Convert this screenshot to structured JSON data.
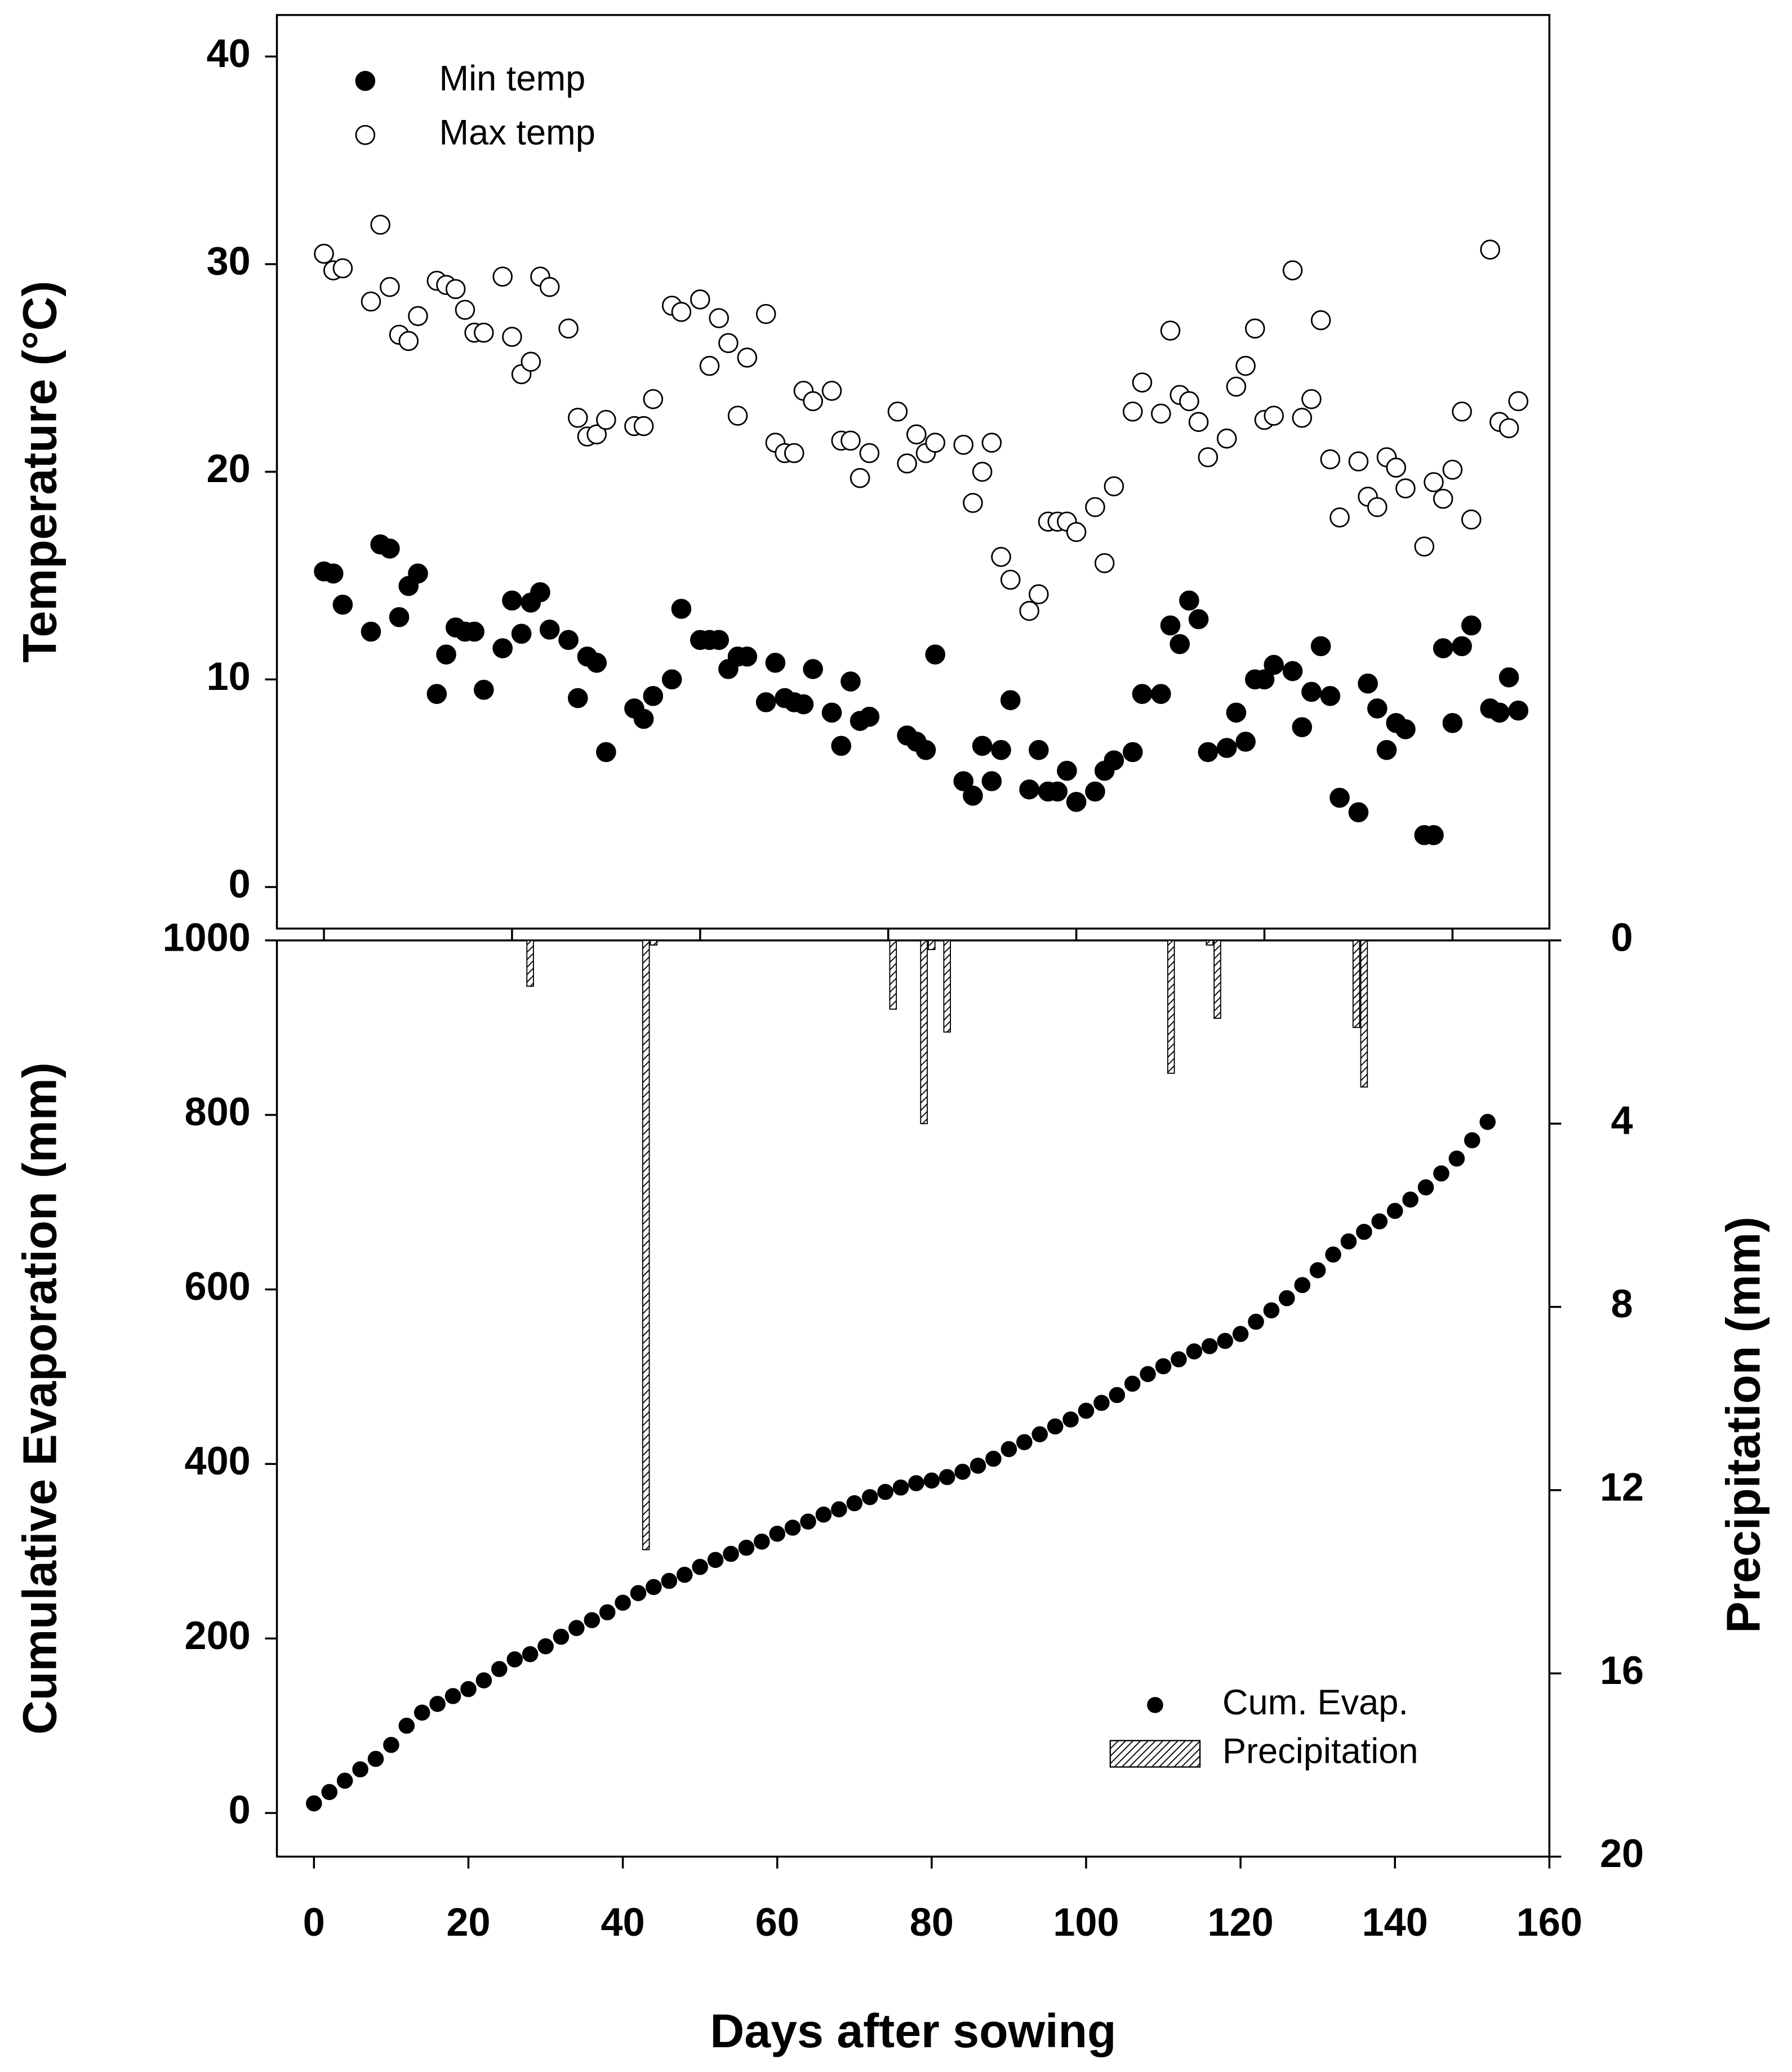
{
  "chart_data": [
    {
      "type": "scatter",
      "ylabel": "Temperature (°C)",
      "xlim": [
        -5,
        130.3
      ],
      "xticks": [
        0,
        20,
        40,
        60,
        80,
        100,
        120
      ],
      "xtick_labels": false,
      "ylim": [
        -2,
        42
      ],
      "yticks": [
        0,
        10,
        20,
        30,
        40
      ],
      "legend": "upper left",
      "x": [
        0,
        1,
        2,
        5,
        6,
        7,
        8,
        9,
        10,
        12,
        13,
        14,
        15,
        16,
        17,
        19,
        20,
        21,
        22,
        23,
        24,
        26,
        27,
        28,
        29,
        30,
        33,
        34,
        35,
        37,
        38,
        40,
        41,
        42,
        43,
        44,
        45,
        47,
        48,
        49,
        50,
        51,
        52,
        54,
        55,
        56,
        57,
        58,
        61,
        62,
        63,
        64,
        65,
        68,
        69,
        70,
        71,
        72,
        73,
        75,
        76,
        77,
        78,
        79,
        80,
        82,
        83,
        84,
        86,
        87,
        89,
        90,
        91,
        92,
        93,
        94,
        96,
        97,
        98,
        99,
        100,
        101,
        103,
        104,
        105,
        106,
        107,
        108,
        110,
        111,
        112,
        113,
        114,
        115,
        117,
        118,
        119,
        120,
        121,
        122,
        124,
        125,
        126,
        127
      ],
      "series": [
        {
          "name": "Min temp",
          "color": "#000000",
          "marker": "filled",
          "values": [
            15.2,
            15.1,
            13.6,
            12.3,
            16.5,
            16.3,
            13.0,
            14.5,
            15.1,
            9.3,
            11.2,
            12.5,
            12.3,
            12.3,
            9.5,
            11.5,
            13.8,
            12.2,
            13.7,
            14.2,
            12.4,
            11.9,
            9.1,
            11.1,
            10.8,
            6.5,
            8.6,
            8.1,
            9.2,
            10.0,
            13.4,
            11.9,
            11.9,
            11.9,
            10.5,
            11.1,
            11.1,
            8.9,
            10.8,
            9.1,
            8.9,
            8.8,
            10.5,
            8.4,
            6.8,
            9.9,
            8.0,
            8.2,
            null,
            7.3,
            7.0,
            6.6,
            11.2,
            5.1,
            4.4,
            6.8,
            5.1,
            6.6,
            9.0,
            4.7,
            6.6,
            4.6,
            4.6,
            5.6,
            4.1,
            4.6,
            5.6,
            6.1,
            6.5,
            9.3,
            9.3,
            12.6,
            11.7,
            13.8,
            12.9,
            6.5,
            6.7,
            8.4,
            7.0,
            10.0,
            10.0,
            10.7,
            10.4,
            7.7,
            9.4,
            11.6,
            9.2,
            4.3,
            3.6,
            9.8,
            8.6,
            6.6,
            7.9,
            7.6,
            2.5,
            2.5,
            11.5,
            7.9,
            11.6,
            12.6,
            8.6,
            8.4,
            10.1,
            8.5
          ]
        },
        {
          "name": "Max temp",
          "color": "#000000",
          "marker": "open",
          "values": [
            30.5,
            29.7,
            29.8,
            28.2,
            31.9,
            28.9,
            26.6,
            26.3,
            27.5,
            29.2,
            29.0,
            28.8,
            27.8,
            26.7,
            26.7,
            29.4,
            26.5,
            24.7,
            25.3,
            29.4,
            28.9,
            26.9,
            22.6,
            21.7,
            21.8,
            22.5,
            22.2,
            22.2,
            23.5,
            28.0,
            27.7,
            28.3,
            25.1,
            27.4,
            26.2,
            22.7,
            25.5,
            27.6,
            21.4,
            20.9,
            20.9,
            23.9,
            23.4,
            23.9,
            21.5,
            21.5,
            19.7,
            20.9,
            22.9,
            20.4,
            21.8,
            20.9,
            21.4,
            21.3,
            18.5,
            20.0,
            21.4,
            15.9,
            14.8,
            13.3,
            14.1,
            17.6,
            17.6,
            17.6,
            17.1,
            18.3,
            15.6,
            19.3,
            22.9,
            24.3,
            22.8,
            26.8,
            23.7,
            23.4,
            22.4,
            20.7,
            21.6,
            24.1,
            25.1,
            26.9,
            22.5,
            22.7,
            29.7,
            22.6,
            23.5,
            27.3,
            20.6,
            17.8,
            20.5,
            18.8,
            18.3,
            20.7,
            20.2,
            19.2,
            16.4,
            19.5,
            18.7,
            20.1,
            22.9,
            17.7,
            30.7,
            22.4,
            22.1,
            23.4
          ]
        }
      ]
    },
    {
      "type": "combo",
      "xlabel": "Days after sowing",
      "ylabel": "Cumulative Evaporation (mm)",
      "y2label": "Precipitation (mm)",
      "xlim": [
        -4.8,
        160
      ],
      "xticks": [
        0,
        20,
        40,
        60,
        80,
        100,
        120,
        140,
        160
      ],
      "xtick_labels": true,
      "ylim": [
        -50,
        1000
      ],
      "yticks": [
        0,
        200,
        400,
        600,
        800,
        1000
      ],
      "y2lim": [
        20,
        0
      ],
      "y2ticks": [
        0,
        4,
        8,
        12,
        16,
        20
      ],
      "legend": "lower right",
      "series": [
        {
          "name": "Cum. Evap.",
          "type": "scatter",
          "color": "#000000",
          "x": [
            0,
            2,
            4,
            6,
            8,
            10,
            12,
            14,
            16,
            18,
            20,
            22,
            24,
            26,
            28,
            30,
            32,
            34,
            36,
            38,
            40,
            42,
            44,
            46,
            48,
            50,
            52,
            54,
            56,
            58,
            60,
            62,
            64,
            66,
            68,
            70,
            72,
            74,
            76,
            78,
            80,
            82,
            84,
            86,
            88,
            90,
            92,
            94,
            96,
            98,
            100,
            102,
            104,
            106,
            108,
            110,
            112,
            114,
            116,
            118,
            120,
            122,
            124,
            126,
            128,
            130,
            132,
            134,
            136,
            138,
            140,
            142,
            144,
            146,
            148,
            150,
            152
          ],
          "values": [
            11,
            24,
            37,
            50,
            62,
            78,
            100,
            115,
            125,
            134,
            142,
            152,
            165,
            176,
            182,
            191,
            202,
            212,
            221,
            230,
            241,
            252,
            259,
            266,
            273,
            282,
            290,
            297,
            304,
            311,
            320,
            327,
            334,
            342,
            348,
            355,
            362,
            368,
            373,
            378,
            381,
            385,
            391,
            398,
            406,
            417,
            425,
            434,
            443,
            451,
            461,
            470,
            479,
            492,
            503,
            512,
            520,
            529,
            535,
            541,
            549,
            563,
            576,
            590,
            605,
            622,
            640,
            655,
            666,
            678,
            690,
            703,
            717,
            733,
            750,
            771,
            792
          ]
        },
        {
          "name": "Precipitation",
          "type": "bar",
          "axis": "y2",
          "color": "#000000",
          "x": [
            28,
            43,
            44,
            75,
            79,
            80,
            82,
            111,
            116,
            117,
            135,
            136
          ],
          "values": [
            1.0,
            13.3,
            0.1,
            1.5,
            4.0,
            0.2,
            2.0,
            2.9,
            0.1,
            1.7,
            1.9,
            3.2
          ]
        }
      ]
    }
  ]
}
